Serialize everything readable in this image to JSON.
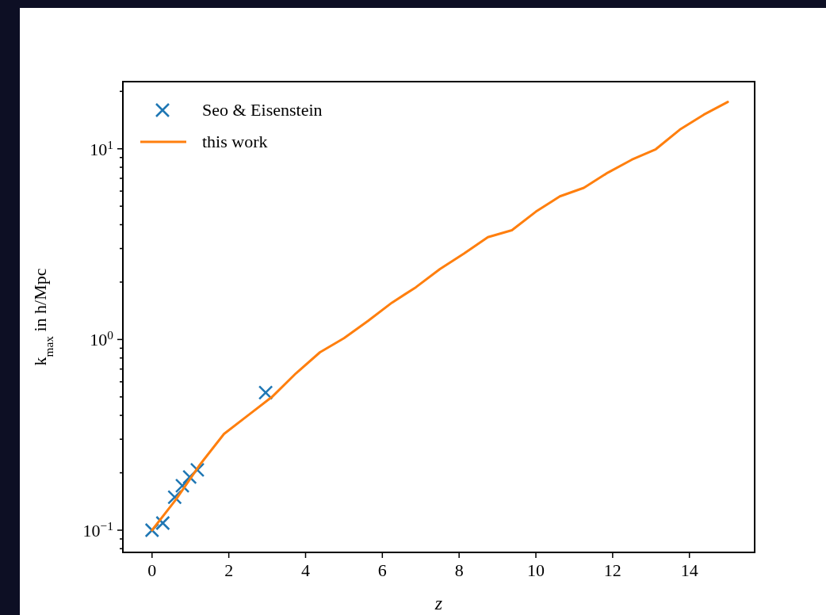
{
  "chart_data": {
    "type": "line",
    "xlabel": "z",
    "ylabel": "k$_{max}$ in h/Mpc",
    "log": "y",
    "grid": false,
    "legend": "top left",
    "xlim": [
      -0.76,
      15.7
    ],
    "xticks": [
      0,
      2,
      4,
      6,
      8,
      10,
      12,
      14
    ],
    "ylim": [
      0.0765,
      22.5
    ],
    "yticks": [
      {
        "value": 0.08,
        "label": null
      },
      {
        "value": 0.09,
        "label": null
      },
      {
        "value": 0.1,
        "label": "10$^{−1}$"
      },
      {
        "value": 0.2,
        "label": null
      },
      {
        "value": 0.3,
        "label": null
      },
      {
        "value": 0.4,
        "label": null
      },
      {
        "value": 0.5,
        "label": null
      },
      {
        "value": 0.6,
        "label": null
      },
      {
        "value": 0.7,
        "label": null
      },
      {
        "value": 0.8,
        "label": null
      },
      {
        "value": 0.9,
        "label": null
      },
      {
        "value": 1,
        "label": "10$^{0}$"
      },
      {
        "value": 2,
        "label": null
      },
      {
        "value": 3,
        "label": null
      },
      {
        "value": 4,
        "label": null
      },
      {
        "value": 5,
        "label": null
      },
      {
        "value": 6,
        "label": null
      },
      {
        "value": 7,
        "label": null
      },
      {
        "value": 8,
        "label": null
      },
      {
        "value": 9,
        "label": null
      },
      {
        "value": 10,
        "label": "10$^{1}$"
      },
      {
        "value": 20,
        "label": null
      }
    ],
    "series": [
      {
        "name": "Seo & Eisenstein",
        "type": "scatter",
        "marker": "cross",
        "color": "#1f77b4",
        "x": [
          0,
          0.28,
          0.59,
          0.79,
          0.98,
          1.18,
          2.96
        ],
        "values": [
          0.1,
          0.109,
          0.149,
          0.171,
          0.19,
          0.207,
          0.527
        ]
      },
      {
        "name": "this work",
        "type": "line",
        "marker": "none",
        "line_style": "solid",
        "color": "#ff7f0e",
        "x": [
          0,
          0.625,
          1.25,
          1.875,
          2.5,
          3.125,
          3.75,
          4.375,
          5,
          5.625,
          6.25,
          6.875,
          7.5,
          8.125,
          8.75,
          9.375,
          10,
          10.625,
          11.25,
          11.875,
          12.5,
          13.125,
          13.75,
          14.375,
          15
        ],
        "values": [
          0.1,
          0.145,
          0.221,
          0.32,
          0.4,
          0.5,
          0.665,
          0.857,
          1.015,
          1.25,
          1.56,
          1.88,
          2.34,
          2.82,
          3.44,
          3.74,
          4.68,
          5.63,
          6.24,
          7.5,
          8.77,
          9.95,
          12.6,
          15.1,
          17.6
        ]
      }
    ]
  }
}
